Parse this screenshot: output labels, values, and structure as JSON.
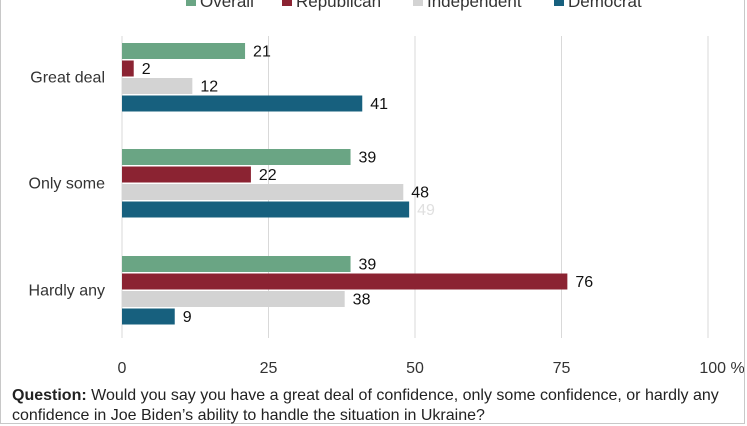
{
  "colors": {
    "Overall": "#6aa584",
    "Republican": "#8b2332",
    "Independent": "#d3d3d3",
    "Democrat": "#17607e",
    "grid": "#d9d9d9",
    "label_dark": "#111111",
    "label_light": "#e0e0e0"
  },
  "legend": [
    "Overall",
    "Republican",
    "Independent",
    "Democrat"
  ],
  "question": {
    "label": "Question:",
    "text": "Would you say you have a great deal of confidence, only some confidence, or hardly any confidence in Joe Biden’s ability to handle the situation in Ukraine?"
  },
  "chart_data": {
    "type": "bar",
    "orientation": "horizontal",
    "categories": [
      "Great deal",
      "Only some",
      "Hardly any"
    ],
    "series": [
      {
        "name": "Overall",
        "values": [
          21,
          39,
          39
        ]
      },
      {
        "name": "Republican",
        "values": [
          2,
          22,
          76
        ]
      },
      {
        "name": "Independent",
        "values": [
          12,
          48,
          38
        ]
      },
      {
        "name": "Democrat",
        "values": [
          41,
          49,
          9
        ]
      }
    ],
    "xlim": [
      0,
      100
    ],
    "x_ticks": [
      "0",
      "25",
      "50",
      "75",
      "100 %"
    ],
    "grid": true,
    "legend_position": "top",
    "title": "",
    "xlabel": "",
    "ylabel": ""
  }
}
